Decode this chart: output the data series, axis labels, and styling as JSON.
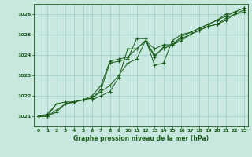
{
  "title": "Graphe pression niveau de la mer (hPa)",
  "bg_color": "#c8e8e0",
  "grid_color": "#9ecfca",
  "line_color": "#1a5c1a",
  "xlim": [
    -0.5,
    23.5
  ],
  "ylim": [
    1020.5,
    1026.5
  ],
  "yticks": [
    1021,
    1022,
    1023,
    1024,
    1025,
    1026
  ],
  "xticks": [
    0,
    1,
    2,
    3,
    4,
    5,
    6,
    7,
    8,
    9,
    10,
    11,
    12,
    13,
    14,
    15,
    16,
    17,
    18,
    19,
    20,
    21,
    22,
    23
  ],
  "series": [
    [
      1021.0,
      1021.0,
      1021.2,
      1021.6,
      1021.7,
      1021.8,
      1021.8,
      1022.0,
      1022.2,
      1022.9,
      1024.3,
      1024.3,
      1024.7,
      1023.9,
      1024.4,
      1024.5,
      1024.7,
      1025.0,
      1025.2,
      1025.4,
      1025.5,
      1025.7,
      1026.0,
      1026.1
    ],
    [
      1021.0,
      1021.0,
      1021.3,
      1021.6,
      1021.7,
      1021.8,
      1021.9,
      1022.2,
      1022.5,
      1023.0,
      1023.6,
      1023.8,
      1024.7,
      1024.3,
      1024.5,
      1024.5,
      1024.8,
      1025.0,
      1025.2,
      1025.4,
      1025.5,
      1025.8,
      1026.0,
      1026.2
    ],
    [
      1021.0,
      1021.0,
      1021.6,
      1021.6,
      1021.7,
      1021.8,
      1021.9,
      1022.3,
      1023.6,
      1023.7,
      1023.8,
      1024.8,
      1024.8,
      1023.5,
      1023.6,
      1024.7,
      1025.0,
      1025.1,
      1025.3,
      1025.5,
      1025.7,
      1025.9,
      1026.1,
      1026.3
    ],
    [
      1021.0,
      1021.1,
      1021.6,
      1021.7,
      1021.7,
      1021.8,
      1022.0,
      1022.5,
      1023.7,
      1023.8,
      1023.9,
      1024.3,
      1024.7,
      1024.0,
      1024.3,
      1024.5,
      1024.9,
      1025.1,
      1025.3,
      1025.5,
      1025.7,
      1026.0,
      1026.1,
      1026.3
    ]
  ]
}
